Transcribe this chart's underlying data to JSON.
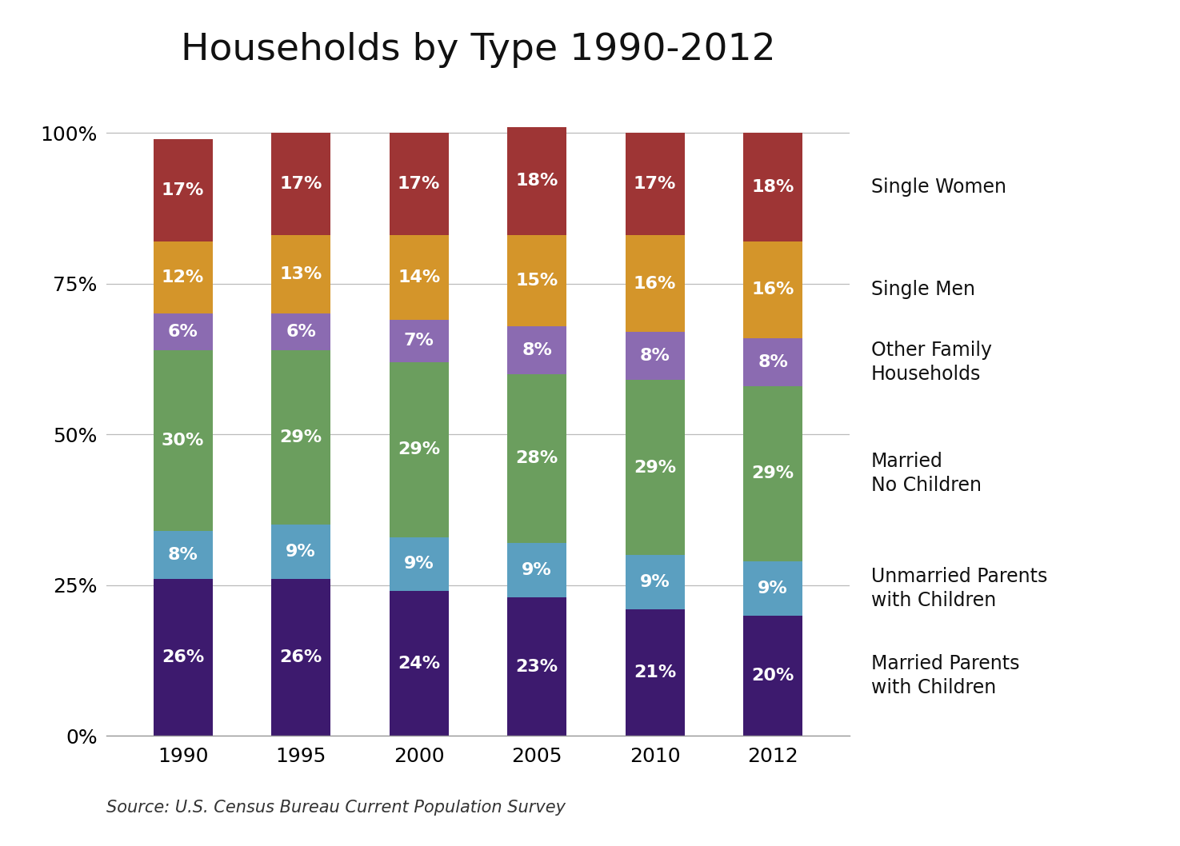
{
  "title": "Households by Type 1990-2012",
  "source": "Source: U.S. Census Bureau Current Population Survey",
  "years": [
    "1990",
    "1995",
    "2000",
    "2005",
    "2010",
    "2012"
  ],
  "categories": [
    "Married Parents\nwith Children",
    "Unmarried Parents\nwith Children",
    "Married\nNo Children",
    "Other Family\nHouseholds",
    "Single Men",
    "Single Women"
  ],
  "values": {
    "Married Parents\nwith Children": [
      26,
      26,
      24,
      23,
      21,
      20
    ],
    "Unmarried Parents\nwith Children": [
      8,
      9,
      9,
      9,
      9,
      9
    ],
    "Married\nNo Children": [
      30,
      29,
      29,
      28,
      29,
      29
    ],
    "Other Family\nHouseholds": [
      6,
      6,
      7,
      8,
      8,
      8
    ],
    "Single Men": [
      12,
      13,
      14,
      15,
      16,
      16
    ],
    "Single Women": [
      17,
      17,
      17,
      18,
      17,
      18
    ]
  },
  "colors": {
    "Married Parents\nwith Children": "#3d1a6e",
    "Unmarried Parents\nwith Children": "#5b9fc0",
    "Married\nNo Children": "#6b9e5e",
    "Other Family\nHouseholds": "#8b6bb1",
    "Single Men": "#d4952a",
    "Single Women": "#9e3535"
  },
  "background_color": "#ffffff",
  "bar_width": 0.5,
  "ylim": [
    0,
    108
  ],
  "yticks": [
    0,
    25,
    50,
    75,
    100
  ],
  "ytick_labels": [
    "0%",
    "25%",
    "50%",
    "75%",
    "100%"
  ],
  "title_fontsize": 34,
  "label_fontsize": 16,
  "tick_fontsize": 18,
  "legend_fontsize": 17,
  "source_fontsize": 15,
  "legend_entries": [
    {
      "key": "Single Women",
      "label": "Single Women"
    },
    {
      "key": "Single Men",
      "label": "Single Men"
    },
    {
      "key": "Other Family\nHouseholds",
      "label": "Other Family\nHouseholds"
    },
    {
      "key": "Married\nNo Children",
      "label": "Married\nNo Children"
    },
    {
      "key": "Unmarried Parents\nwith Children",
      "label": "Unmarried Parents\nwith Children"
    },
    {
      "key": "Married Parents\nwith Children",
      "label": "Married Parents\nwith Children"
    }
  ]
}
